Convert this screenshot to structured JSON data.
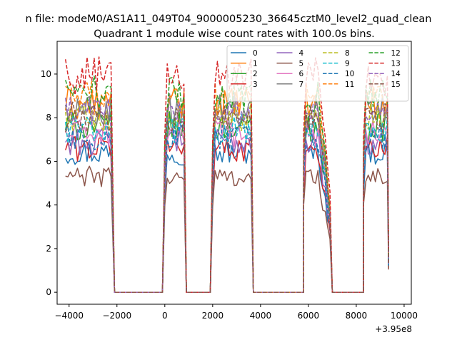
{
  "chart_data": {
    "type": "line",
    "suptitle": "n file: modeM0/AS1A11_049T04_9000005230_36645cztM0_level2_quad_clean",
    "title": "Quadrant 1 module wise count rates with 100.0s bins.",
    "xlabel": "",
    "ylabel": "",
    "offset_label": "+3.95e8",
    "xlim": [
      -4500,
      10300
    ],
    "ylim": [
      -0.55,
      11.5
    ],
    "xticks": [
      -4000,
      -2000,
      0,
      2000,
      4000,
      6000,
      8000,
      10000
    ],
    "xtick_labels": [
      "−4000",
      "−2000",
      "0",
      "2000",
      "4000",
      "6000",
      "8000",
      "10000"
    ],
    "yticks": [
      0,
      2,
      4,
      6,
      8,
      10
    ],
    "ytick_labels": [
      "0",
      "2",
      "4",
      "6",
      "8",
      "10"
    ],
    "grid": false,
    "legend_position": "top-right",
    "legend_columns": 4,
    "bin_step": 100,
    "segments": [
      {
        "on_start": -4150,
        "on_end": -2200,
        "trailing_zero_end": -100
      },
      {
        "on_start": 0,
        "on_end": 800,
        "trailing_zero_end": 1900
      },
      {
        "on_start": 2000,
        "on_end": 3600,
        "trailing_zero_end": 5800
      },
      {
        "on_start": 5800,
        "on_end": 6900,
        "trailing_zero_end": 8300
      },
      {
        "on_start": 8300,
        "on_end": 9350,
        "trailing_zero_end": 9350
      }
    ],
    "series": [
      {
        "name": "0",
        "color": "#1f77b4",
        "dash": "solid",
        "level": 6.4
      },
      {
        "name": "1",
        "color": "#ff7f0e",
        "dash": "solid",
        "level": 8.6
      },
      {
        "name": "2",
        "color": "#2ca02c",
        "dash": "solid",
        "level": 7.6
      },
      {
        "name": "3",
        "color": "#d62728",
        "dash": "solid",
        "level": 6.6
      },
      {
        "name": "4",
        "color": "#9467bd",
        "dash": "solid",
        "level": 6.9
      },
      {
        "name": "5",
        "color": "#8c564b",
        "dash": "solid",
        "level": 5.3
      },
      {
        "name": "6",
        "color": "#e377c2",
        "dash": "solid",
        "level": 7.3
      },
      {
        "name": "7",
        "color": "#7f7f7f",
        "dash": "solid",
        "level": 8.4
      },
      {
        "name": "8",
        "color": "#bcbd22",
        "dash": "dashed",
        "level": 8.0
      },
      {
        "name": "9",
        "color": "#17becf",
        "dash": "dashed",
        "level": 7.5
      },
      {
        "name": "10",
        "color": "#1f77b4",
        "dash": "dashed",
        "level": 7.1
      },
      {
        "name": "11",
        "color": "#ff7f0e",
        "dash": "dashed",
        "level": 8.9
      },
      {
        "name": "12",
        "color": "#2ca02c",
        "dash": "dashed",
        "level": 9.1
      },
      {
        "name": "13",
        "color": "#d62728",
        "dash": "dashed",
        "level": 9.9
      },
      {
        "name": "14",
        "color": "#9467bd",
        "dash": "dashed",
        "level": 8.2
      },
      {
        "name": "15",
        "color": "#8c564b",
        "dash": "dashed",
        "level": 8.0
      }
    ]
  }
}
